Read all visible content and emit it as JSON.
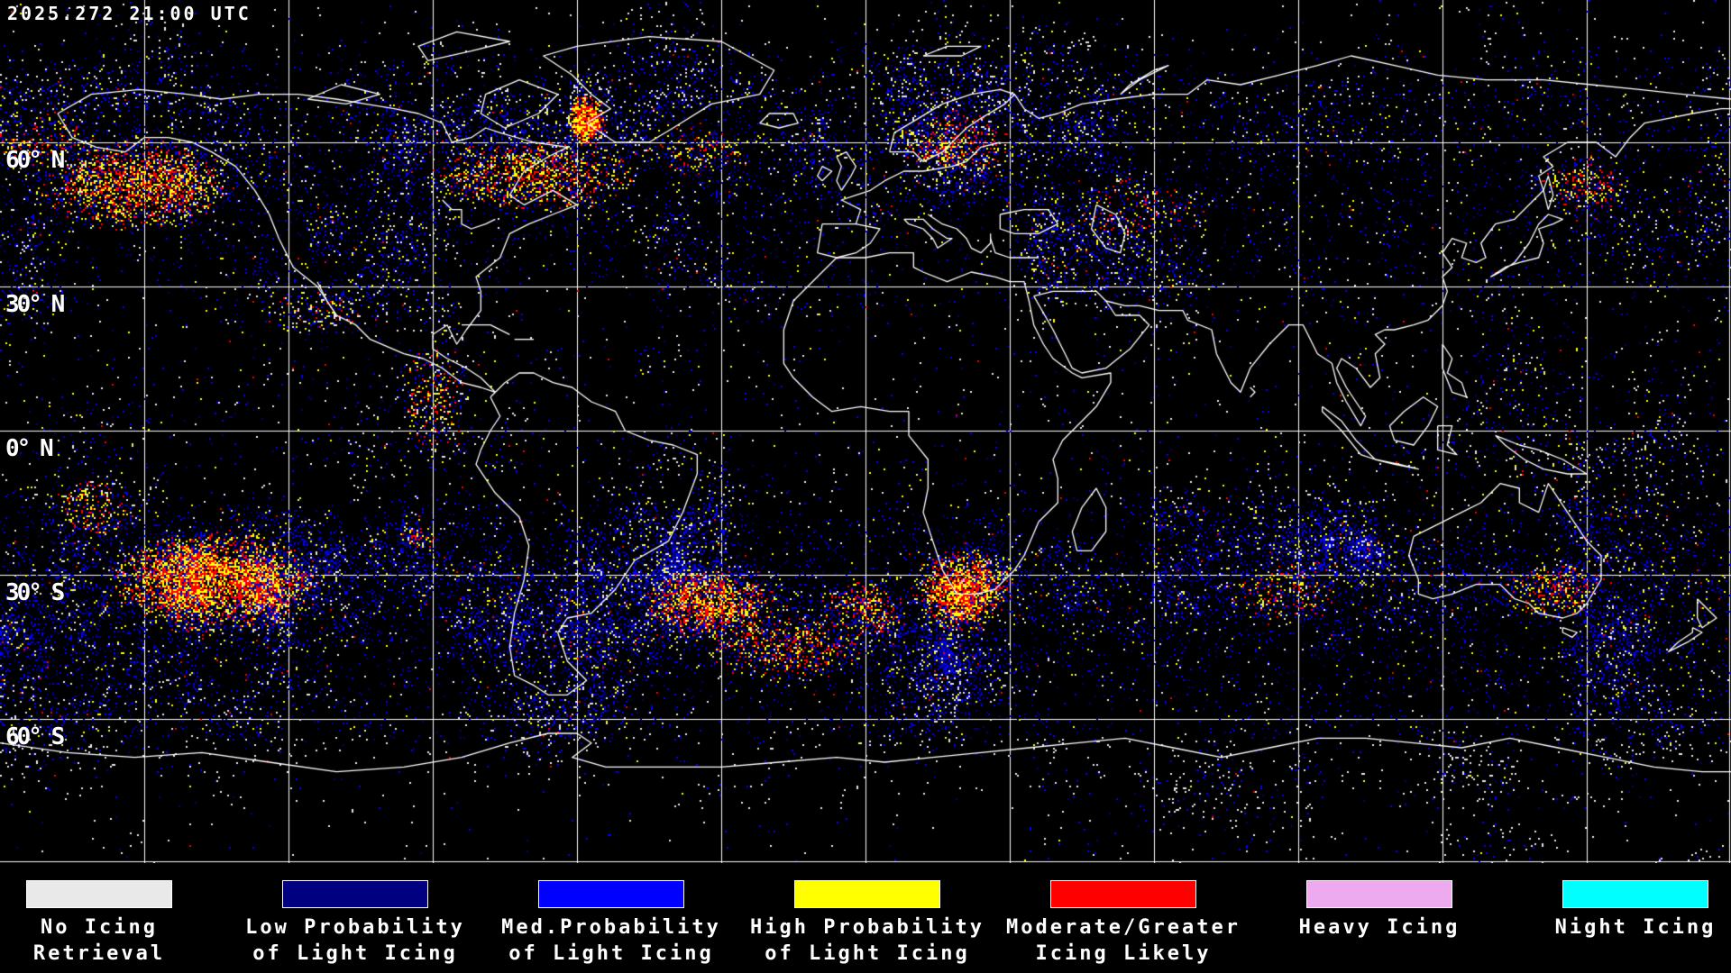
{
  "header": {
    "timestamp": "2025.272 21:00 UTC"
  },
  "map": {
    "projection": "equirectangular-global",
    "background_color": "#000000",
    "grid": {
      "lon_step_deg": 30,
      "lat_step_deg": 30,
      "color": "#ffffff"
    },
    "coastline_color": "#ffffff",
    "latitude_labels": [
      {
        "text": "60° N",
        "lat": 60
      },
      {
        "text": "30° N",
        "lat": 30
      },
      {
        "text": "0° N",
        "lat": 0
      },
      {
        "text": "30° S",
        "lat": -30
      },
      {
        "text": "60° S",
        "lat": -60
      }
    ]
  },
  "legend": {
    "items": [
      {
        "id": "no_icing",
        "color": "#e9e9e9",
        "label_lines": [
          "No Icing",
          "Retrieval"
        ]
      },
      {
        "id": "low",
        "color": "#000080",
        "label_lines": [
          "Low Probability",
          "of Light Icing"
        ]
      },
      {
        "id": "med",
        "color": "#0000ff",
        "label_lines": [
          "Med.Probability",
          "of Light Icing"
        ]
      },
      {
        "id": "high",
        "color": "#ffff00",
        "label_lines": [
          "High Probability",
          "of Light Icing"
        ]
      },
      {
        "id": "moderate",
        "color": "#ff0000",
        "label_lines": [
          "Moderate/Greater",
          "Icing Likely"
        ]
      },
      {
        "id": "heavy",
        "color": "#eeaaee",
        "label_lines": [
          "Heavy Icing"
        ]
      },
      {
        "id": "night",
        "color": "#00ffff",
        "label_lines": [
          "Night Icing"
        ]
      }
    ]
  }
}
